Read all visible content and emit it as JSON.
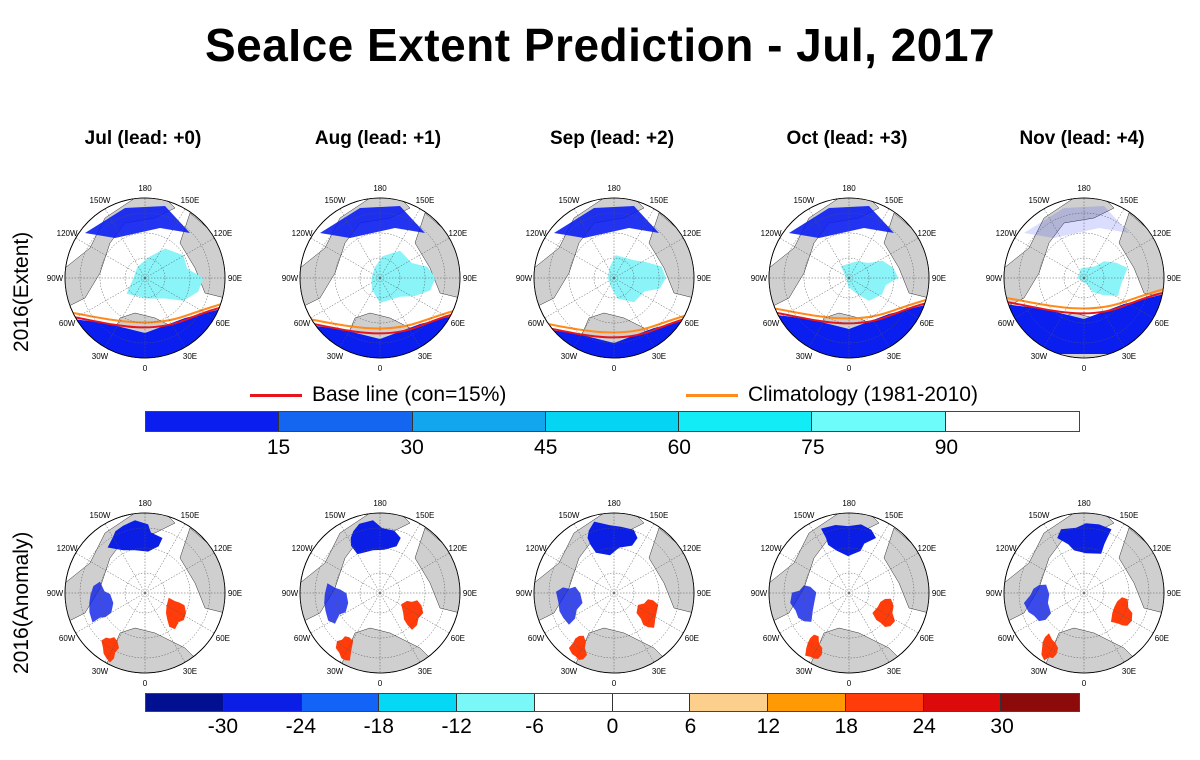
{
  "title": "SeaIce Extent Prediction - Jul, 2017",
  "columns": [
    {
      "label": "Jul (lead: +0)"
    },
    {
      "label": "Aug (lead: +1)"
    },
    {
      "label": "Sep (lead: +2)"
    },
    {
      "label": "Oct (lead: +3)"
    },
    {
      "label": "Nov (lead: +4)"
    }
  ],
  "rows": [
    {
      "label": "2016(Extent)"
    },
    {
      "label": "2016(Anomaly)"
    }
  ],
  "longitude_labels": [
    "180",
    "150E",
    "120E",
    "90E",
    "60E",
    "30E",
    "0",
    "30W",
    "60W",
    "90W",
    "120W",
    "150W"
  ],
  "legend": {
    "base_line": {
      "label": "Base line (con=15%)",
      "color": "#e8141c"
    },
    "climatology": {
      "label": "Climatology (1981-2010)",
      "color": "#ff8c1a"
    }
  },
  "extent_colorbar": {
    "colors": [
      "#0a1ef0",
      "#1465f0",
      "#11a6ee",
      "#05d4f2",
      "#11ecf6",
      "#6efcfa",
      "#ffffff"
    ],
    "ticks": [
      "15",
      "30",
      "45",
      "60",
      "75",
      "90"
    ]
  },
  "anomaly_colorbar": {
    "colors": [
      "#001090",
      "#0a1ee6",
      "#1164f5",
      "#05d8f4",
      "#7af8f8",
      "#ffffff",
      "#ffffff",
      "#fcd08c",
      "#ff9a05",
      "#ff3c0a",
      "#dc0a0a",
      "#8c0a0a"
    ],
    "ticks": [
      "-30",
      "-24",
      "-18",
      "-12",
      "-6",
      "0",
      "6",
      "12",
      "18",
      "24",
      "30"
    ]
  },
  "map_colors": {
    "land": "#cfcfcf",
    "ocean_ice": "#ffffff",
    "open_water_extent": "#0a1ef0",
    "marginal_ice": "#8af4f8",
    "negative_anomaly": "#0a1ee6",
    "positive_anomaly": "#ff3c0a"
  }
}
